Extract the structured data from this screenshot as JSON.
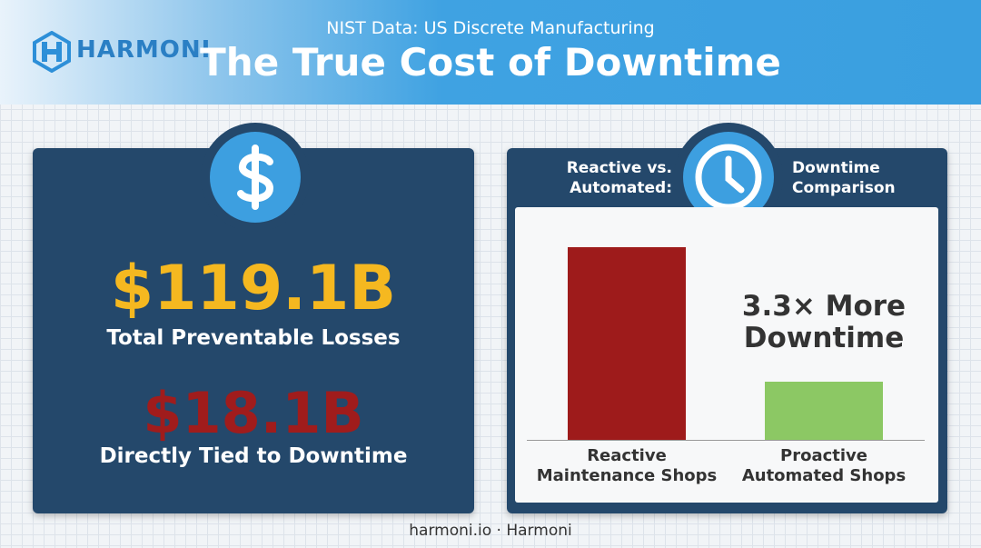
{
  "header": {
    "brand": "HARMONI",
    "subtitle": "NIST Data: US Discrete Manufacturing",
    "title": "The True Cost of Downtime"
  },
  "left_panel": {
    "stat_1": "$119.1B",
    "label_1": "Total Preventable Losses",
    "stat_2": "$18.1B",
    "label_2": "Directly Tied to Downtime"
  },
  "chart_data": {
    "type": "bar",
    "title_left": "Reactive vs. Automated:",
    "title_right": "Downtime Comparison",
    "annotation": "3.3× More Downtime",
    "categories": [
      "Reactive Maintenance Shops",
      "Proactive Automated Shops"
    ],
    "values": [
      3.3,
      1
    ],
    "colors": [
      "#9e1b1b",
      "#8cc864"
    ],
    "ylim": [
      0,
      3.5
    ]
  },
  "footer": "harmoni.io · Harmoni"
}
